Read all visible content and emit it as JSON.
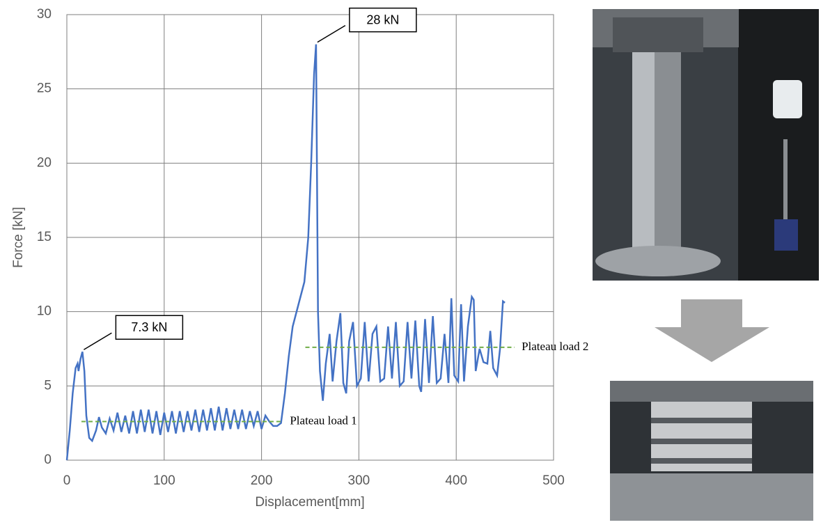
{
  "chart_data": {
    "type": "line",
    "xlabel": "Displacement[mm]",
    "ylabel": "Force [kN]",
    "x": [
      0,
      3,
      6,
      9,
      11,
      12,
      14,
      16,
      18,
      20,
      23,
      26,
      30,
      33,
      36,
      40,
      44,
      48,
      52,
      56,
      60,
      64,
      68,
      72,
      76,
      80,
      84,
      88,
      92,
      96,
      100,
      104,
      108,
      112,
      116,
      120,
      124,
      128,
      132,
      136,
      140,
      144,
      148,
      152,
      156,
      160,
      164,
      168,
      172,
      176,
      180,
      184,
      188,
      192,
      196,
      200,
      204,
      208,
      212,
      216,
      220,
      224,
      228,
      232,
      238,
      244,
      248,
      251,
      254,
      256,
      258,
      260,
      263,
      266,
      270,
      273,
      277,
      281,
      284,
      287,
      290,
      294,
      298,
      302,
      306,
      310,
      314,
      318,
      322,
      326,
      330,
      334,
      338,
      342,
      346,
      350,
      354,
      358,
      362,
      364,
      368,
      372,
      376,
      380,
      384,
      388,
      392,
      395,
      398,
      402,
      405,
      408,
      412,
      416,
      418,
      420,
      424,
      428,
      432,
      435,
      438,
      442,
      445,
      448,
      450
    ],
    "series": [
      {
        "color": "#4472c4",
        "values": [
          0,
          2,
          4.5,
          6.2,
          6.5,
          6,
          6.8,
          7.3,
          6,
          3,
          1.5,
          1.3,
          2,
          2.9,
          2.2,
          1.8,
          2.8,
          2,
          3.2,
          1.9,
          3.0,
          1.8,
          3.3,
          1.8,
          3.4,
          1.9,
          3.4,
          1.8,
          3.3,
          1.7,
          3.2,
          1.9,
          3.3,
          1.8,
          3.3,
          1.9,
          3.3,
          2,
          3.4,
          1.9,
          3.4,
          2,
          3.5,
          2,
          3.6,
          2,
          3.5,
          2.1,
          3.4,
          2.1,
          3.4,
          2.1,
          3.3,
          2.3,
          3.3,
          2.1,
          3,
          2.6,
          2.3,
          2.3,
          2.5,
          4.5,
          7,
          9,
          10.5,
          12,
          15,
          20,
          26,
          28,
          10,
          6,
          4,
          6.5,
          8.5,
          5.3,
          8,
          9.9,
          5.2,
          4.5,
          8,
          9.3,
          5,
          5.5,
          9.3,
          5.3,
          8.5,
          9,
          5.3,
          5.5,
          9,
          5.5,
          9.3,
          5,
          5.3,
          9.3,
          5.5,
          9.4,
          5,
          4.6,
          9.5,
          5.2,
          9.7,
          5.2,
          5.5,
          8.5,
          5.2,
          10.9,
          5.7,
          5.3,
          10.5,
          5.3,
          9,
          11,
          10.8,
          6,
          7.5,
          6.6,
          6.5,
          8.7,
          6.2,
          5.7,
          7.5,
          10.7,
          10.6
        ]
      }
    ],
    "xlim": [
      0,
      500
    ],
    "xticks": [
      0,
      100,
      200,
      300,
      400,
      500
    ],
    "ylim": [
      0,
      30
    ],
    "yticks": [
      0,
      5,
      10,
      15,
      20,
      25,
      30
    ],
    "grid": true,
    "annotations": [
      {
        "text": "7.3 kN",
        "x": 16,
        "y": 7.3
      },
      {
        "text": "28 kN",
        "x": 256,
        "y": 28
      }
    ],
    "reference_lines": [
      {
        "label": "Plateau load 1",
        "value": 2.6,
        "x": [
          15,
          222
        ],
        "color": "#70ad47"
      },
      {
        "label": "Plateau load 2",
        "value": 7.6,
        "x": [
          245,
          460
        ],
        "color": "#70ad47"
      }
    ]
  }
}
